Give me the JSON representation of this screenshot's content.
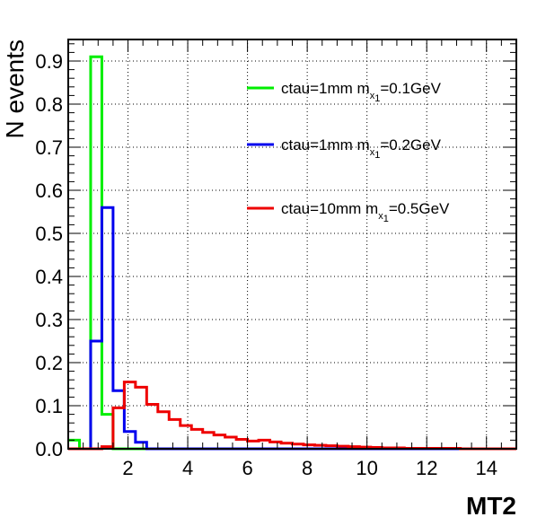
{
  "chart_data": {
    "type": "histogram",
    "xlabel": "MT2",
    "ylabel": "N events",
    "xlim": [
      0,
      15
    ],
    "ylim": [
      0,
      0.95
    ],
    "grid": true,
    "legend_position": "top-right",
    "x_ticks": [
      "2",
      "4",
      "6",
      "8",
      "10",
      "12",
      "14"
    ],
    "y_ticks": [
      "0.0",
      "0.1",
      "0.2",
      "0.3",
      "0.4",
      "0.5",
      "0.6",
      "0.7",
      "0.8",
      "0.9"
    ],
    "bin_width": 0.375,
    "series": [
      {
        "name": "ctau=1mm m<sub>x1</sub>=0.1GeV",
        "label_main": "ctau=1mm m",
        "label_sub": "x",
        "label_subsub": "1",
        "label_tail": "=0.1GeV",
        "color": "#00ee00",
        "values": [
          0.02,
          0.0,
          0.91,
          0.08,
          0.0,
          0.0,
          0.0,
          0.0,
          0.0,
          0.0,
          0.0,
          0.0,
          0.0,
          0.0,
          0.0,
          0.0,
          0.0,
          0.0,
          0.0,
          0.0,
          0.0,
          0.0,
          0.0,
          0.0,
          0.0,
          0.0,
          0.0,
          0.0,
          0.0,
          0.0,
          0.0,
          0.0,
          0.0,
          0.0,
          0.0,
          0.0,
          0.0,
          0.0,
          0.0,
          0.0
        ]
      },
      {
        "name": "ctau=1mm m<sub>x1</sub>=0.2GeV",
        "label_main": "ctau=1mm m",
        "label_sub": "x",
        "label_subsub": "1",
        "label_tail": "=0.2GeV",
        "color": "#0000ee",
        "values": [
          0.0,
          0.0,
          0.25,
          0.56,
          0.135,
          0.04,
          0.015,
          0.0,
          0.0,
          0.0,
          0.0,
          0.0,
          0.0,
          0.0,
          0.0,
          0.0,
          0.0,
          0.0,
          0.0,
          0.0,
          0.0,
          0.0,
          0.0,
          0.0,
          0.0,
          0.0,
          0.0,
          0.0,
          0.0,
          0.0,
          0.0,
          0.0,
          0.0,
          0.0,
          0.0,
          0.0,
          0.0,
          0.0,
          0.0,
          0.0
        ]
      },
      {
        "name": "ctau=10mm m<sub>x1</sub>=0.5GeV",
        "label_main": "ctau=10mm m",
        "label_sub": "x",
        "label_subsub": "1",
        "label_tail": "=0.5GeV",
        "color": "#ee0000",
        "values": [
          0.0,
          0.0,
          0.0,
          0.005,
          0.095,
          0.155,
          0.143,
          0.103,
          0.086,
          0.068,
          0.054,
          0.045,
          0.038,
          0.032,
          0.027,
          0.022,
          0.018,
          0.02,
          0.016,
          0.013,
          0.011,
          0.009,
          0.008,
          0.007,
          0.006,
          0.005,
          0.004,
          0.003,
          0.002,
          0.002,
          0.001,
          0.001,
          0.001,
          0.001,
          0.001,
          0.0,
          0.0,
          0.0,
          0.0,
          0.0
        ]
      }
    ]
  }
}
